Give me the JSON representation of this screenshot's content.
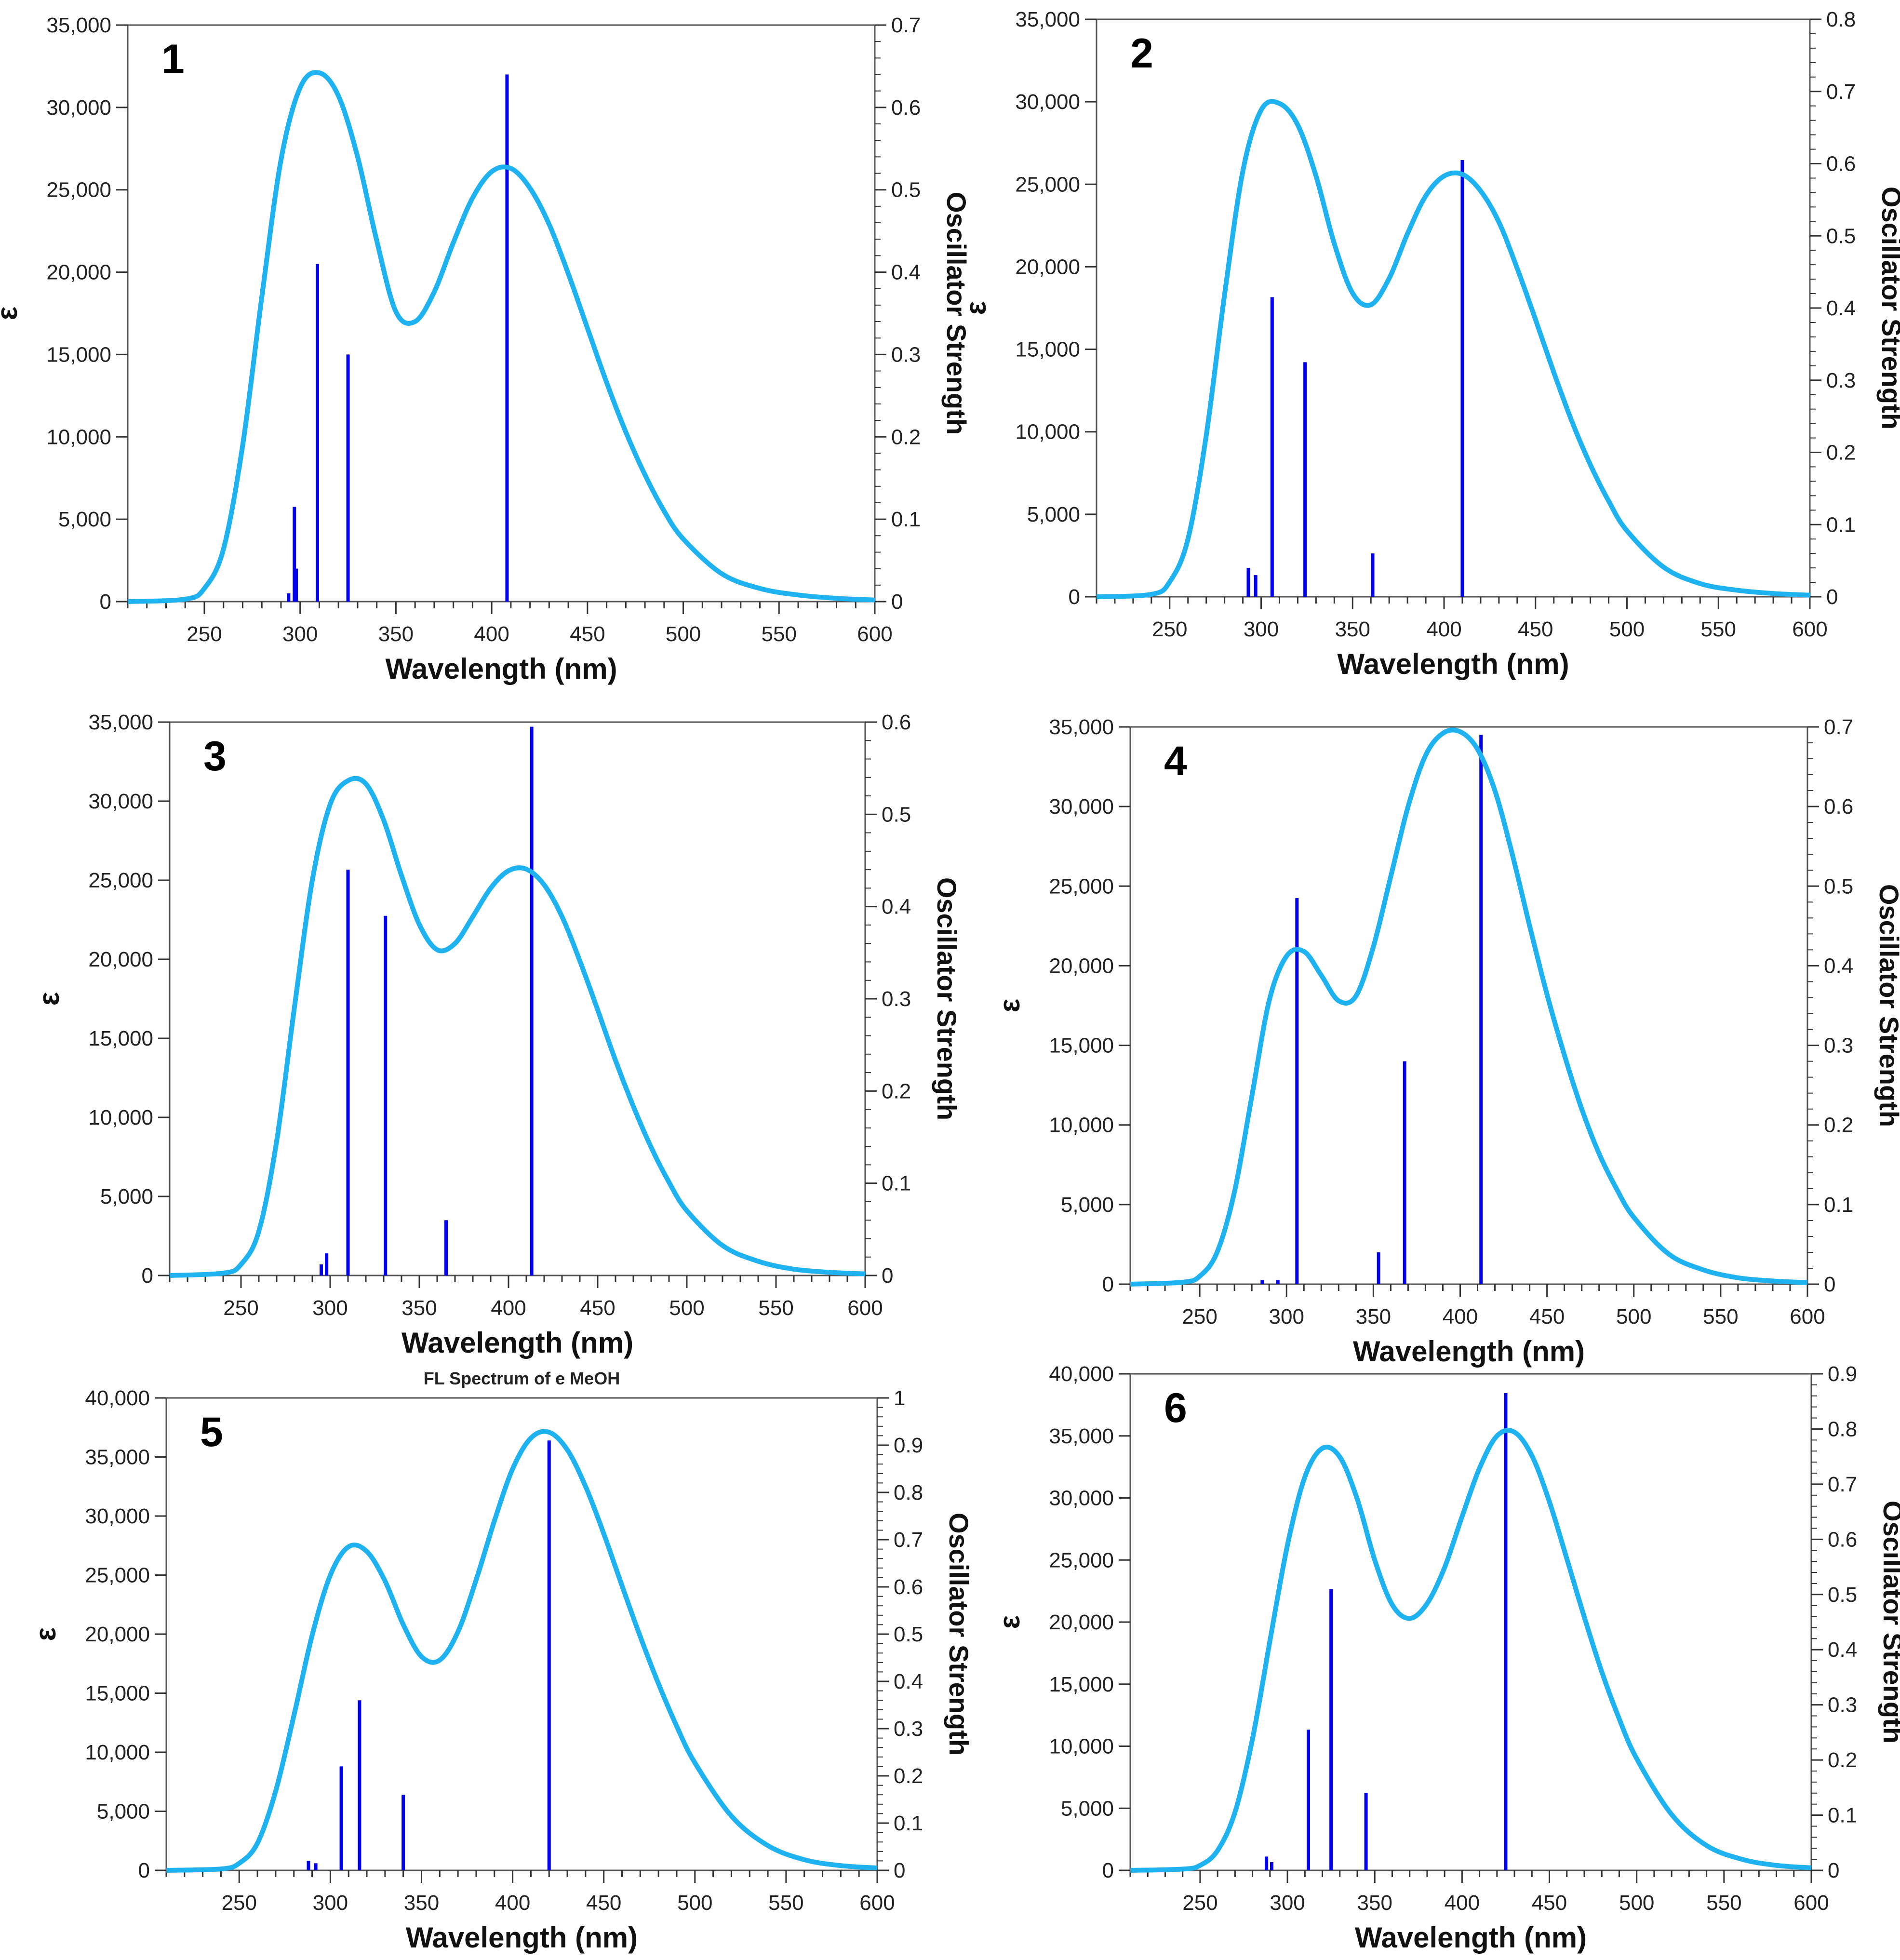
{
  "figure": {
    "panel_count": 6
  },
  "chart_data": [
    {
      "type": "line",
      "panel_label": "1",
      "title": "",
      "xlabel": "Wavelength (nm)",
      "ylabel": "ε",
      "y2label": "Oscillator Strength",
      "xlim": [
        210,
        600
      ],
      "ylim": [
        0,
        35000
      ],
      "y2lim": [
        0,
        0.7
      ],
      "x_ticks": [
        "250",
        "300",
        "350",
        "400",
        "450",
        "500",
        "550",
        "600"
      ],
      "y_ticks": [
        "0",
        "5,000",
        "10,000",
        "15,000",
        "20,000",
        "25,000",
        "30,000",
        "35,000"
      ],
      "y2_ticks": [
        "0",
        "0.1",
        "0.2",
        "0.3",
        "0.4",
        "0.5",
        "0.6",
        "0.7"
      ],
      "series": [
        {
          "name": "ε",
          "color": "#1fb2f0",
          "x": [
            210,
            240,
            250,
            260,
            270,
            280,
            290,
            300,
            310,
            320,
            330,
            340,
            350,
            360,
            370,
            380,
            390,
            400,
            410,
            420,
            430,
            440,
            450,
            460,
            470,
            480,
            490,
            500,
            520,
            540,
            560,
            580,
            600
          ],
          "y": [
            0,
            150,
            800,
            3200,
            9500,
            18500,
            26800,
            31200,
            32100,
            30700,
            27000,
            21900,
            17600,
            17000,
            18800,
            21800,
            24500,
            26100,
            26300,
            25100,
            22900,
            19900,
            16600,
            13300,
            10300,
            7700,
            5500,
            3800,
            1700,
            800,
            400,
            200,
            100
          ]
        }
      ],
      "sticks": {
        "name": "Oscillator Strength",
        "color": "#0000ee",
        "x": [
          294,
          297,
          298,
          309,
          325,
          408
        ],
        "values": [
          0.01,
          0.115,
          0.04,
          0.41,
          0.3,
          0.64
        ]
      }
    },
    {
      "type": "line",
      "panel_label": "2",
      "title": "",
      "xlabel": "Wavelength (nm)",
      "ylabel": "ε",
      "y2label": "Oscillator Strength",
      "xlim": [
        210,
        600
      ],
      "ylim": [
        0,
        35000
      ],
      "y2lim": [
        0,
        0.8
      ],
      "x_ticks": [
        "250",
        "300",
        "350",
        "400",
        "450",
        "500",
        "550",
        "600"
      ],
      "y_ticks": [
        "0",
        "5,000",
        "10,000",
        "15,000",
        "20,000",
        "25,000",
        "30,000",
        "35,000"
      ],
      "y2_ticks": [
        "0",
        "0.1",
        "0.2",
        "0.3",
        "0.4",
        "0.5",
        "0.6",
        "0.7",
        "0.8"
      ],
      "series": [
        {
          "name": "ε",
          "color": "#1fb2f0",
          "x": [
            210,
            240,
            250,
            260,
            270,
            280,
            290,
            300,
            310,
            320,
            330,
            340,
            350,
            360,
            370,
            380,
            390,
            400,
            410,
            420,
            430,
            440,
            450,
            460,
            470,
            480,
            490,
            500,
            520,
            540,
            560,
            580,
            600
          ],
          "y": [
            0,
            150,
            900,
            3500,
            9800,
            18300,
            25800,
            29500,
            29900,
            28600,
            25500,
            21400,
            18400,
            17700,
            19300,
            22000,
            24300,
            25500,
            25600,
            24600,
            22700,
            19900,
            16800,
            13600,
            10600,
            8000,
            5800,
            4000,
            1800,
            800,
            400,
            200,
            100
          ]
        }
      ],
      "sticks": {
        "name": "Oscillator Strength",
        "color": "#0000ee",
        "x": [
          293,
          297,
          306,
          324,
          361,
          410
        ],
        "values": [
          0.04,
          0.03,
          0.415,
          0.325,
          0.06,
          0.605
        ]
      }
    },
    {
      "type": "line",
      "panel_label": "3",
      "title": "",
      "xlabel": "Wavelength (nm)",
      "ylabel": "ε",
      "y2label": "Oscillator Strength",
      "xlim": [
        210,
        600
      ],
      "ylim": [
        0,
        35000
      ],
      "y2lim": [
        0,
        0.6
      ],
      "x_ticks": [
        "250",
        "300",
        "350",
        "400",
        "450",
        "500",
        "550",
        "600"
      ],
      "y_ticks": [
        "0",
        "5,000",
        "10,000",
        "15,000",
        "20,000",
        "25,000",
        "30,000",
        "35,000"
      ],
      "y2_ticks": [
        "0",
        "0.1",
        "0.2",
        "0.3",
        "0.4",
        "0.5",
        "0.6"
      ],
      "series": [
        {
          "name": "ε",
          "color": "#1fb2f0",
          "x": [
            210,
            240,
            250,
            260,
            270,
            280,
            290,
            300,
            310,
            320,
            330,
            340,
            350,
            360,
            370,
            380,
            390,
            400,
            410,
            420,
            430,
            440,
            450,
            460,
            470,
            480,
            490,
            500,
            520,
            540,
            560,
            580,
            600
          ],
          "y": [
            0,
            150,
            700,
            2800,
            8500,
            17000,
            25000,
            29800,
            31300,
            31100,
            28800,
            25300,
            22200,
            20600,
            21000,
            22700,
            24500,
            25600,
            25700,
            24700,
            22700,
            19900,
            16800,
            13600,
            10700,
            8100,
            5900,
            4100,
            1900,
            900,
            400,
            200,
            100
          ]
        }
      ],
      "sticks": {
        "name": "Oscillator Strength",
        "color": "#0000ee",
        "x": [
          295,
          298,
          310,
          331,
          365,
          413
        ],
        "values": [
          0.012,
          0.024,
          0.44,
          0.39,
          0.06,
          0.595
        ]
      }
    },
    {
      "type": "line",
      "panel_label": "4",
      "title": "",
      "xlabel": "Wavelength (nm)",
      "ylabel": "ε",
      "y2label": "Oscillator Strength",
      "xlim": [
        210,
        600
      ],
      "ylim": [
        0,
        35000
      ],
      "y2lim": [
        0,
        0.7
      ],
      "x_ticks": [
        "250",
        "300",
        "350",
        "400",
        "450",
        "500",
        "550",
        "600"
      ],
      "y_ticks": [
        "0",
        "5,000",
        "10,000",
        "15,000",
        "20,000",
        "25,000",
        "30,000",
        "35,000"
      ],
      "y2_ticks": [
        "0",
        "0.1",
        "0.2",
        "0.3",
        "0.4",
        "0.5",
        "0.6",
        "0.7"
      ],
      "series": [
        {
          "name": "ε",
          "color": "#1fb2f0",
          "x": [
            210,
            240,
            250,
            260,
            270,
            280,
            290,
            300,
            310,
            320,
            330,
            340,
            350,
            360,
            370,
            380,
            390,
            400,
            410,
            420,
            430,
            440,
            450,
            460,
            470,
            480,
            490,
            500,
            520,
            540,
            560,
            580,
            600
          ],
          "y": [
            0,
            120,
            500,
            2000,
            5800,
            11800,
            17800,
            20600,
            20900,
            19400,
            17800,
            18100,
            21200,
            25600,
            30000,
            33200,
            34600,
            34700,
            33600,
            31000,
            27000,
            22500,
            18200,
            14400,
            11000,
            8200,
            6000,
            4200,
            1900,
            900,
            400,
            200,
            100
          ]
        }
      ],
      "sticks": {
        "name": "Oscillator Strength",
        "color": "#0000ee",
        "x": [
          286,
          295,
          306,
          353,
          368,
          412
        ],
        "values": [
          0.005,
          0.005,
          0.485,
          0.04,
          0.28,
          0.69
        ]
      }
    },
    {
      "type": "line",
      "panel_label": "5",
      "title": "FL Spectrum of e MeOH",
      "xlabel": "Wavelength (nm)",
      "ylabel": "ε",
      "y2label": "Oscillator Strength",
      "xlim": [
        210,
        600
      ],
      "ylim": [
        0,
        40000
      ],
      "y2lim": [
        0,
        1
      ],
      "x_ticks": [
        "250",
        "300",
        "350",
        "400",
        "450",
        "500",
        "550",
        "600"
      ],
      "y_ticks": [
        "0",
        "5,000",
        "10,000",
        "15,000",
        "20,000",
        "25,000",
        "30,000",
        "35,000",
        "40,000"
      ],
      "y2_ticks": [
        "0",
        "0.1",
        "0.2",
        "0.3",
        "0.4",
        "0.5",
        "0.6",
        "0.7",
        "0.8",
        "0.9",
        "1"
      ],
      "series": [
        {
          "name": "ε",
          "color": "#1fb2f0",
          "x": [
            210,
            240,
            250,
            260,
            270,
            280,
            290,
            300,
            310,
            320,
            330,
            340,
            350,
            360,
            370,
            380,
            390,
            400,
            410,
            420,
            430,
            440,
            450,
            460,
            470,
            480,
            490,
            500,
            520,
            540,
            560,
            580,
            600
          ],
          "y": [
            0,
            120,
            600,
            2300,
            6700,
            13100,
            19900,
            25000,
            27400,
            27000,
            24500,
            20800,
            18100,
            17800,
            20200,
            24600,
            29600,
            34000,
            36600,
            37100,
            35600,
            32500,
            28500,
            24100,
            19800,
            15800,
            12200,
            9100,
            4600,
            2100,
            900,
            400,
            200
          ]
        }
      ],
      "sticks": {
        "name": "Oscillator Strength",
        "color": "#0000ee",
        "x": [
          288,
          292,
          306,
          316,
          340,
          420
        ],
        "values": [
          0.02,
          0.015,
          0.22,
          0.36,
          0.16,
          0.91
        ]
      }
    },
    {
      "type": "line",
      "panel_label": "6",
      "title": "",
      "xlabel": "Wavelength (nm)",
      "ylabel": "ε",
      "y2label": "Oscillator Strength",
      "xlim": [
        210,
        600
      ],
      "ylim": [
        0,
        40000
      ],
      "y2lim": [
        0,
        0.9
      ],
      "x_ticks": [
        "250",
        "300",
        "350",
        "400",
        "450",
        "500",
        "550",
        "600"
      ],
      "y_ticks": [
        "0",
        "5,000",
        "10,000",
        "15,000",
        "20,000",
        "25,000",
        "30,000",
        "35,000",
        "40,000"
      ],
      "y2_ticks": [
        "0",
        "0.1",
        "0.2",
        "0.3",
        "0.4",
        "0.5",
        "0.6",
        "0.7",
        "0.8",
        "0.9"
      ],
      "series": [
        {
          "name": "ε",
          "color": "#1fb2f0",
          "x": [
            210,
            240,
            250,
            260,
            270,
            280,
            290,
            300,
            310,
            320,
            330,
            340,
            350,
            360,
            370,
            380,
            390,
            400,
            410,
            420,
            430,
            440,
            450,
            460,
            470,
            480,
            490,
            500,
            520,
            540,
            560,
            580,
            600
          ],
          "y": [
            0,
            100,
            400,
            1600,
            4700,
            10600,
            18500,
            26200,
            31700,
            34000,
            33300,
            29900,
            25000,
            21400,
            20300,
            21500,
            24400,
            28500,
            32400,
            35000,
            35300,
            33400,
            29700,
            25100,
            20400,
            16000,
            12200,
            9000,
            4500,
            2000,
            900,
            400,
            200
          ]
        }
      ],
      "sticks": {
        "name": "Oscillator Strength",
        "color": "#0000ee",
        "x": [
          288,
          291,
          312,
          325,
          345,
          425
        ],
        "values": [
          0.025,
          0.015,
          0.255,
          0.51,
          0.14,
          0.865
        ]
      }
    }
  ]
}
